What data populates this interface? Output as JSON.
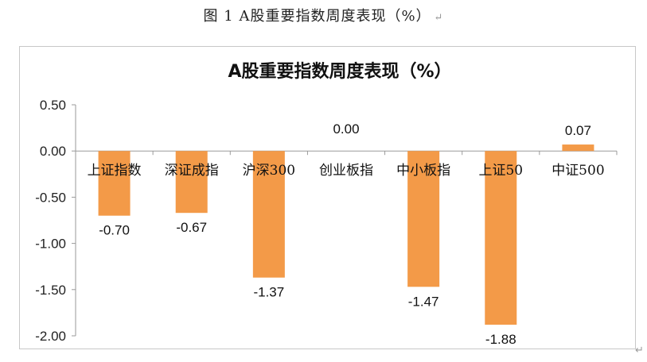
{
  "caption": {
    "text": "图 1 A股重要指数周度表现（%）",
    "para_mark": "↵"
  },
  "chart_data": {
    "type": "bar",
    "title": "A股重要指数周度表现（%）",
    "xlabel": "",
    "ylabel": "",
    "categories": [
      "上证指数",
      "深证成指",
      "沪深300",
      "创业板指",
      "中小板指",
      "上证50",
      "中证500"
    ],
    "values": [
      -0.7,
      -0.67,
      -1.37,
      0.0,
      -1.47,
      -1.88,
      0.07
    ],
    "value_labels": [
      "-0.70",
      "-0.67",
      "-1.37",
      "0.00",
      "-1.47",
      "-1.88",
      "0.07"
    ],
    "ylim": [
      -2.0,
      0.5
    ],
    "yticks": [
      0.5,
      0.0,
      -0.5,
      -1.0,
      -1.5,
      -2.0
    ],
    "ytick_labels": [
      "0.50",
      "0.00",
      "-0.50",
      "-1.00",
      "-1.50",
      "-2.00"
    ],
    "bar_color": "#F39A48",
    "grid": false,
    "legend": "none"
  }
}
